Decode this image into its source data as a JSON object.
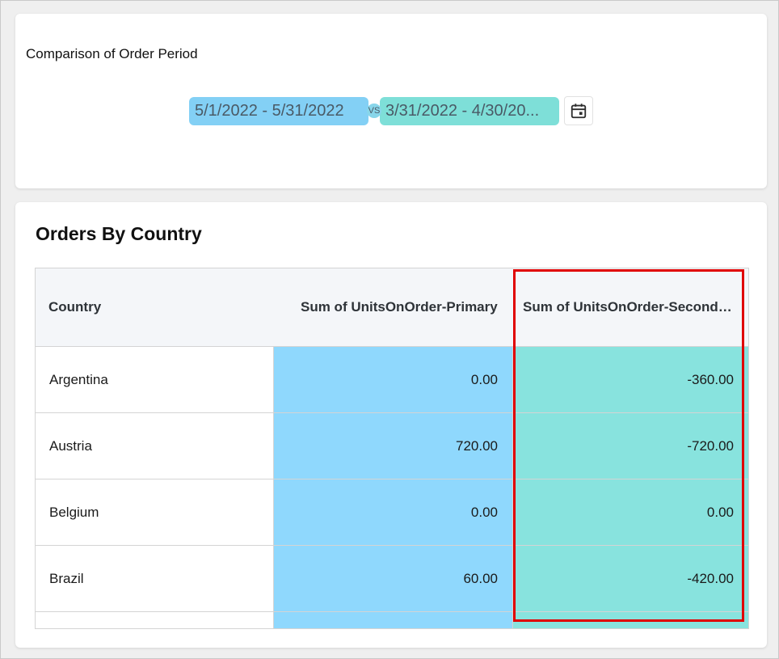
{
  "period_card": {
    "title": "Comparison of Order Period",
    "primary_range": "5/1/2022 - 5/31/2022",
    "vs_label": "VS",
    "secondary_range": "3/31/2022 - 4/30/20...",
    "calendar_icon": "calendar-icon"
  },
  "orders_card": {
    "title": "Orders By Country",
    "columns": [
      "Country",
      "Sum of UnitsOnOrder-Primary",
      "Sum of UnitsOnOrder-Seconda..."
    ],
    "rows": [
      {
        "country": "Argentina",
        "primary": "0.00",
        "secondary": "-360.00"
      },
      {
        "country": "Austria",
        "primary": "720.00",
        "secondary": "-720.00"
      },
      {
        "country": "Belgium",
        "primary": "0.00",
        "secondary": "0.00"
      },
      {
        "country": "Brazil",
        "primary": "60.00",
        "secondary": "-420.00"
      }
    ]
  },
  "colors": {
    "primary": "#8fd8fd",
    "secondary": "#88e3de",
    "highlight": "#e00000"
  }
}
